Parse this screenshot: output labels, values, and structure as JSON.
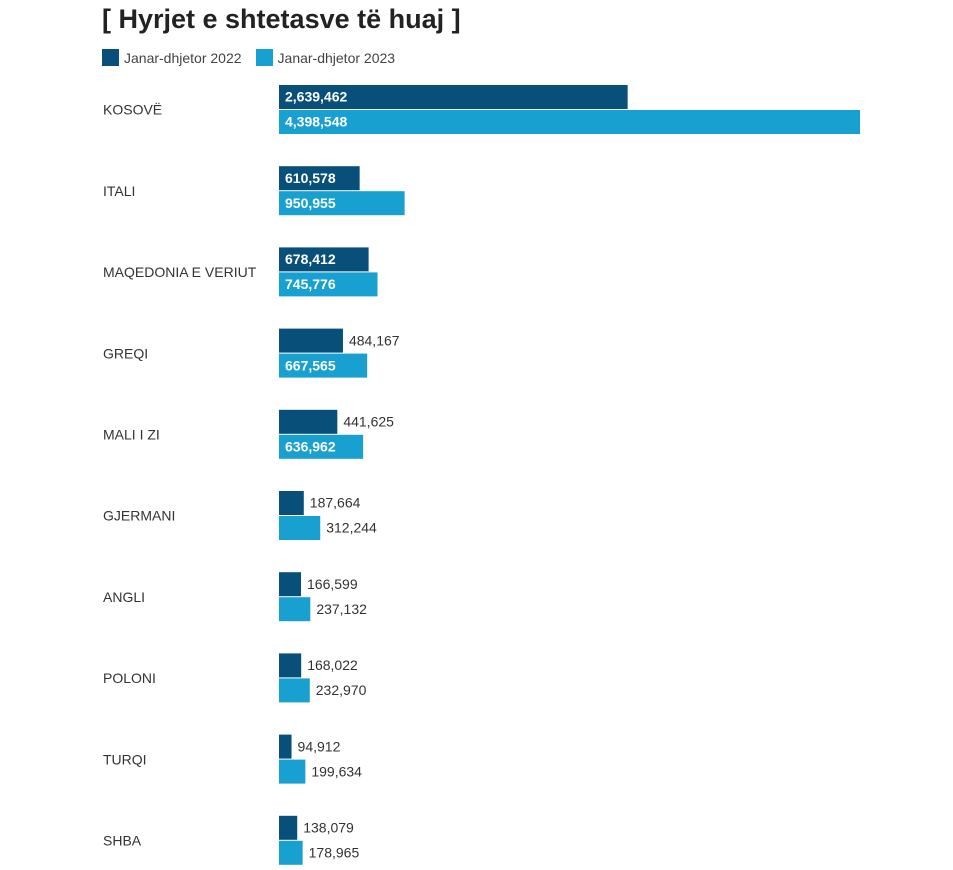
{
  "chart_data": {
    "type": "bar",
    "orientation": "horizontal",
    "title": "[ Hyrjet e shtetasve të huaj ]",
    "categories": [
      "KOSOVË",
      "ITALI",
      "MAQEDONIA E VERIUT",
      "GREQI",
      "MALI I ZI",
      "GJERMANI",
      "ANGLI",
      "POLONI",
      "TURQI",
      "SHBA"
    ],
    "series": [
      {
        "name": "Janar-dhjetor 2022",
        "color": "#08507a",
        "values": [
          2639462,
          610578,
          678412,
          484167,
          441625,
          187664,
          166599,
          168022,
          94912,
          138079
        ],
        "labels": [
          "2,639,462",
          "610,578",
          "678,412",
          "484,167",
          "441,625",
          "187,664",
          "166,599",
          "168,022",
          "94,912",
          "138,079"
        ]
      },
      {
        "name": "Janar-dhjetor 2023",
        "color": "#17a0d0",
        "values": [
          4398548,
          950955,
          745776,
          667565,
          636962,
          312244,
          237132,
          232970,
          199634,
          178965
        ],
        "labels": [
          "4,398,548",
          "950,955",
          "745,776",
          "667,565",
          "636,962",
          "312,244",
          "237,132",
          "232,970",
          "199,634",
          "178,965"
        ]
      }
    ],
    "xlim": [
      0,
      4398548
    ],
    "legend_position": "top-left",
    "grid": false
  }
}
